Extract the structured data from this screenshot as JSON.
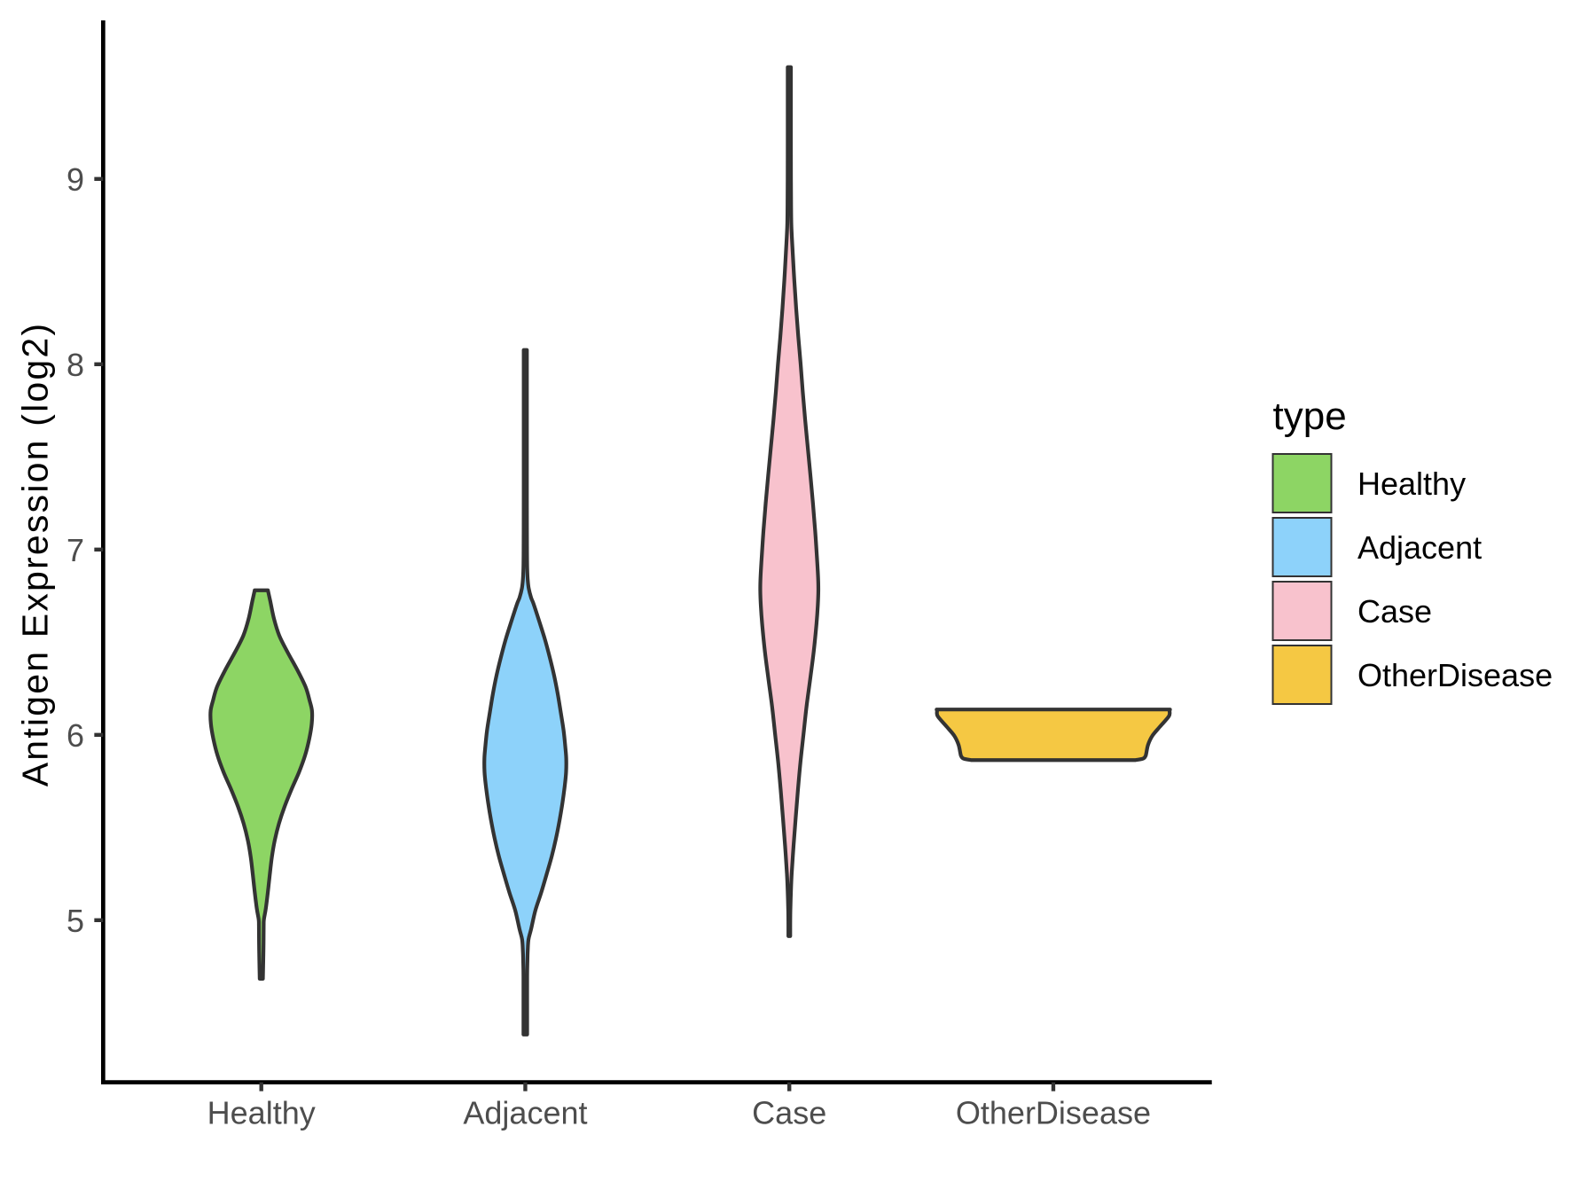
{
  "chart_data": {
    "type": "violin",
    "title": "",
    "xlabel": "",
    "ylabel": "Antigen Expression (log2)",
    "legend_title": "type",
    "legend_position": "right",
    "grid": false,
    "background_color": "#FFFFFF",
    "axis_line_color": "#000000",
    "tick_mark_color": "#333333",
    "tick_label_color": "#4D4D4D",
    "violin_outline_color": "#333333",
    "y_ticks": [
      5,
      6,
      7,
      8,
      9
    ],
    "ylim": [
      4.125,
      9.86
    ],
    "categories": [
      "Healthy",
      "Adjacent",
      "Case",
      "OtherDisease"
    ],
    "series": [
      {
        "name": "Healthy",
        "fill": "#8DD564",
        "outline": "#333333",
        "value_range": [
          4.68,
          6.78
        ],
        "peak_value": 6.13,
        "density": [
          [
            6.78,
            0.025
          ],
          [
            6.722,
            0.034
          ],
          [
            6.627,
            0.048
          ],
          [
            6.536,
            0.068
          ],
          [
            6.445,
            0.1
          ],
          [
            6.349,
            0.137
          ],
          [
            6.258,
            0.168
          ],
          [
            6.185,
            0.183
          ],
          [
            6.129,
            0.192
          ],
          [
            6.06,
            0.191
          ],
          [
            5.981,
            0.182
          ],
          [
            5.89,
            0.166
          ],
          [
            5.799,
            0.143
          ],
          [
            5.708,
            0.115
          ],
          [
            5.612,
            0.088
          ],
          [
            5.522,
            0.067
          ],
          [
            5.431,
            0.051
          ],
          [
            5.34,
            0.04
          ],
          [
            5.244,
            0.032
          ],
          [
            5.153,
            0.025
          ],
          [
            5.062,
            0.017
          ],
          [
            5.005,
            0.01
          ],
          [
            4.971,
            0.009
          ],
          [
            4.876,
            0.0085
          ],
          [
            4.785,
            0.0075
          ],
          [
            4.684,
            0.006
          ]
        ]
      },
      {
        "name": "Adjacent",
        "fill": "#8DD2FA",
        "outline": "#333333",
        "value_range": [
          4.38,
          8.08
        ],
        "peak_value": 5.85,
        "density": [
          [
            8.077,
            0.006
          ],
          [
            7.9,
            0.006
          ],
          [
            7.7,
            0.006
          ],
          [
            7.5,
            0.006
          ],
          [
            7.3,
            0.006
          ],
          [
            7.1,
            0.0062
          ],
          [
            6.98,
            0.0065
          ],
          [
            6.9,
            0.0072
          ],
          [
            6.84,
            0.009
          ],
          [
            6.79,
            0.013
          ],
          [
            6.74,
            0.022
          ],
          [
            6.708,
            0.031
          ],
          [
            6.612,
            0.053
          ],
          [
            6.512,
            0.075
          ],
          [
            6.416,
            0.093
          ],
          [
            6.321,
            0.109
          ],
          [
            6.22,
            0.123
          ],
          [
            6.124,
            0.134
          ],
          [
            6.024,
            0.145
          ],
          [
            5.928,
            0.152
          ],
          [
            5.871,
            0.155
          ],
          [
            5.8,
            0.1545
          ],
          [
            5.732,
            0.15
          ],
          [
            5.636,
            0.141
          ],
          [
            5.541,
            0.13
          ],
          [
            5.44,
            0.116
          ],
          [
            5.344,
            0.1
          ],
          [
            5.249,
            0.081
          ],
          [
            5.148,
            0.06
          ],
          [
            5.052,
            0.038
          ],
          [
            4.952,
            0.022
          ],
          [
            4.895,
            0.012
          ],
          [
            4.83,
            0.009
          ],
          [
            4.78,
            0.008
          ],
          [
            4.7,
            0.007
          ],
          [
            4.55,
            0.007
          ],
          [
            4.383,
            0.007
          ]
        ]
      },
      {
        "name": "Case",
        "fill": "#F8C2CD",
        "outline": "#333333",
        "value_range": [
          4.91,
          9.6
        ],
        "peak_value": 6.82,
        "density": [
          [
            9.603,
            0.006
          ],
          [
            9.4,
            0.006
          ],
          [
            9.2,
            0.006
          ],
          [
            9.0,
            0.0062
          ],
          [
            8.85,
            0.0068
          ],
          [
            8.74,
            0.008
          ],
          [
            8.6,
            0.013
          ],
          [
            8.45,
            0.019
          ],
          [
            8.3,
            0.026
          ],
          [
            8.15,
            0.034
          ],
          [
            8.0,
            0.043
          ],
          [
            7.85,
            0.051
          ],
          [
            7.7,
            0.06
          ],
          [
            7.55,
            0.07
          ],
          [
            7.4,
            0.08
          ],
          [
            7.25,
            0.0895
          ],
          [
            7.1,
            0.098
          ],
          [
            6.95,
            0.105
          ],
          [
            6.85,
            0.109
          ],
          [
            6.78,
            0.11
          ],
          [
            6.7,
            0.108
          ],
          [
            6.6,
            0.103
          ],
          [
            6.45,
            0.0925
          ],
          [
            6.3,
            0.079
          ],
          [
            6.15,
            0.065
          ],
          [
            6.0,
            0.0535
          ],
          [
            5.85,
            0.042
          ],
          [
            5.7,
            0.0325
          ],
          [
            5.55,
            0.024
          ],
          [
            5.4,
            0.016
          ],
          [
            5.25,
            0.009
          ],
          [
            5.15,
            0.006
          ],
          [
            5.05,
            0.004
          ],
          [
            4.98,
            0.0035
          ],
          [
            4.914,
            0.0035
          ]
        ]
      },
      {
        "name": "OtherDisease",
        "fill": "#F5C843",
        "outline": "#333333",
        "value_range": [
          5.86,
          6.14
        ],
        "peak_value": 6.12,
        "density": [
          [
            6.137,
            0.442
          ],
          [
            6.128,
            0.4405
          ],
          [
            6.1,
            0.4375
          ],
          [
            6.043,
            0.403
          ],
          [
            5.995,
            0.375
          ],
          [
            5.947,
            0.359
          ],
          [
            5.9,
            0.352
          ],
          [
            5.885,
            0.349
          ],
          [
            5.872,
            0.34
          ],
          [
            5.864,
            0.312
          ]
        ]
      }
    ],
    "legend_items": [
      {
        "label": "Healthy",
        "color": "#8DD564"
      },
      {
        "label": "Adjacent",
        "color": "#8DD2FA"
      },
      {
        "label": "Case",
        "color": "#F8C2CD"
      },
      {
        "label": "OtherDisease",
        "color": "#F5C843"
      }
    ]
  }
}
